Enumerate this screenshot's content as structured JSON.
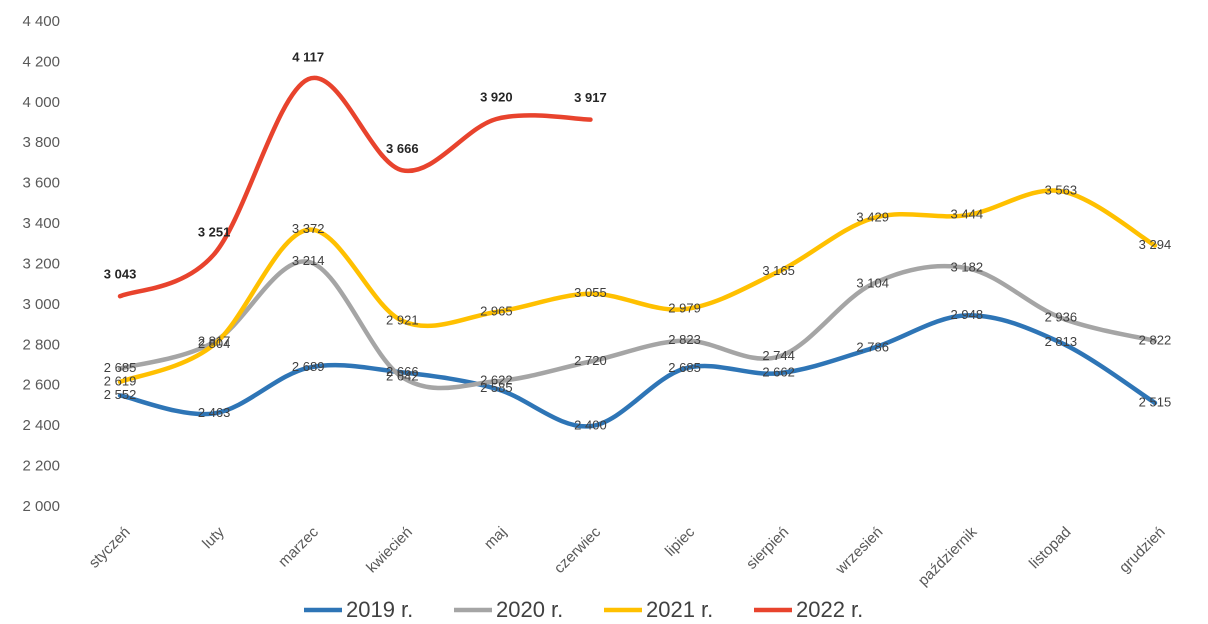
{
  "chart_data": {
    "type": "line",
    "categories": [
      "styczeń",
      "luty",
      "marzec",
      "kwiecień",
      "maj",
      "czerwiec",
      "lipiec",
      "sierpień",
      "wrzesień",
      "październik",
      "listopad",
      "grudzień"
    ],
    "series": [
      {
        "name": "2019 r.",
        "color": "#2e75b6",
        "values": [
          2552,
          2463,
          2689,
          2666,
          2585,
          2400,
          2685,
          2662,
          2786,
          2948,
          2813,
          2515
        ],
        "value_labels": [
          "2 552",
          "2 463",
          "2 689",
          "2 666",
          "2 585",
          "2 400",
          "2 685",
          "2 662",
          "2 786",
          "2 948",
          "2 813",
          "2 515"
        ]
      },
      {
        "name": "2020 r.",
        "color": "#a5a5a5",
        "values": [
          2685,
          2817,
          3214,
          2642,
          2622,
          2720,
          2823,
          2744,
          3104,
          3182,
          2936,
          2822
        ],
        "value_labels": [
          "2 685",
          "2 817",
          "3 214",
          "2 642",
          "2 622",
          "2 720",
          "2 823",
          "2 744",
          "3 104",
          "3 182",
          "2 936",
          "2 822"
        ]
      },
      {
        "name": "2021 r.",
        "color": "#ffc000",
        "values": [
          2619,
          2804,
          3372,
          2921,
          2965,
          3055,
          2979,
          3165,
          3429,
          3444,
          3563,
          3294
        ],
        "value_labels": [
          "2 619",
          "2 804",
          "3 372",
          "2 921",
          "2 965",
          "3 055",
          "2 979",
          "3 165",
          "3 429",
          "3 444",
          "3 563",
          "3 294"
        ]
      },
      {
        "name": "2022 r.",
        "color": "#e8432d",
        "values": [
          3043,
          3251,
          4117,
          3666,
          3920,
          3917,
          null,
          null,
          null,
          null,
          null,
          null
        ],
        "value_labels": [
          "3 043",
          "3 251",
          "4 117",
          "3 666",
          "3 920",
          "3 917",
          null,
          null,
          null,
          null,
          null,
          null
        ]
      }
    ],
    "ylim": [
      2000,
      4400
    ],
    "yticks": [
      {
        "value": 2000,
        "label": "2 000"
      },
      {
        "value": 2200,
        "label": "2 200"
      },
      {
        "value": 2400,
        "label": "2 400"
      },
      {
        "value": 2600,
        "label": "2 600"
      },
      {
        "value": 2800,
        "label": "2 800"
      },
      {
        "value": 3000,
        "label": "3 000"
      },
      {
        "value": 3200,
        "label": "3 200"
      },
      {
        "value": 3400,
        "label": "3 400"
      },
      {
        "value": 3600,
        "label": "3 600"
      },
      {
        "value": 3800,
        "label": "3 800"
      },
      {
        "value": 4000,
        "label": "4 000"
      },
      {
        "value": 4200,
        "label": "4 200"
      },
      {
        "value": 4400,
        "label": "4 400"
      }
    ],
    "grid": false,
    "legend": "bottom"
  }
}
